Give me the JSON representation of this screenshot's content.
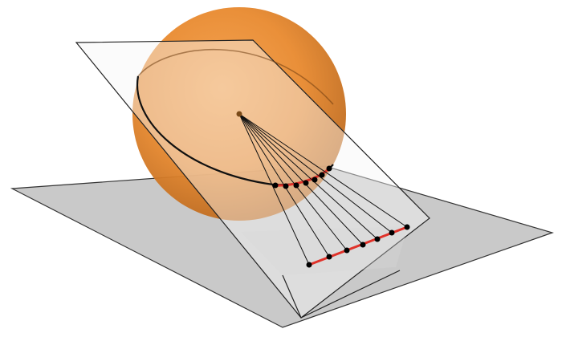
{
  "figure": {
    "description_visible_text": "",
    "colors": {
      "sphere_highlight": "#f5a04a",
      "sphere_mid": "#e8892e",
      "sphere_edge": "#b8661c",
      "horizontal_plane": "#c9c9c9",
      "horizontal_plane_edge": "#333333",
      "inclined_plane_fill": "#f4f4f4",
      "inclined_plane_edge": "#222222",
      "great_circle": "#111111",
      "projection_lines": "#111111",
      "arc_segment": "#e0322a",
      "point": "#000000"
    },
    "icons": {
      "sphere": "sphere-shape",
      "center": "center-point"
    },
    "points_on_arc": 7,
    "points_on_line": 7
  }
}
